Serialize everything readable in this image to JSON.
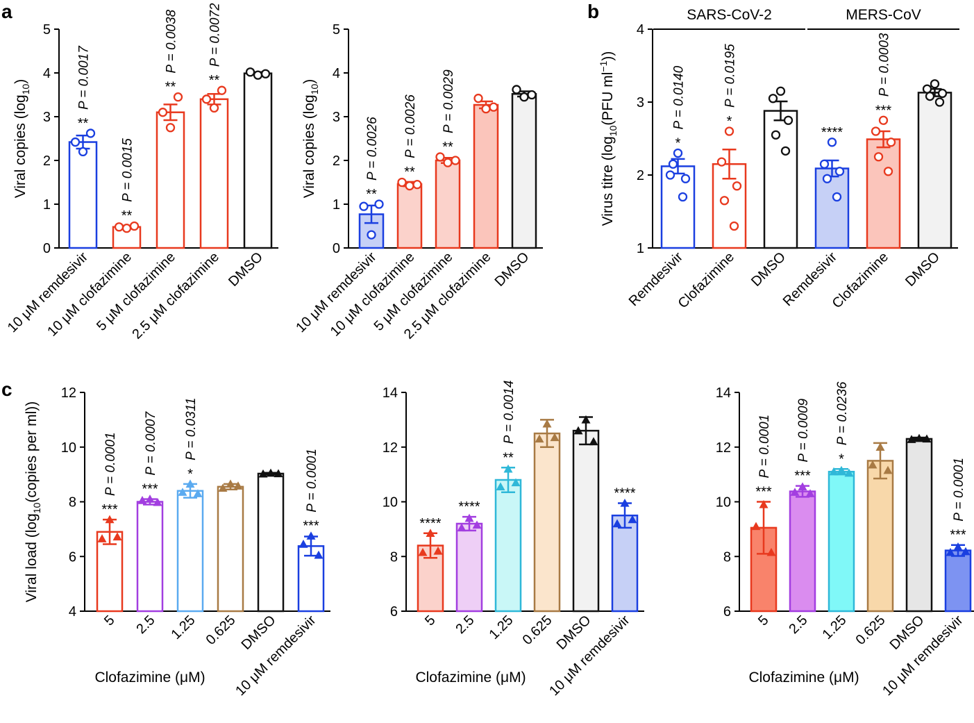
{
  "panel_labels": {
    "a": "a",
    "b": "b",
    "c": "c"
  },
  "chart_data": [
    {
      "id": "a1",
      "type": "bar",
      "title": "",
      "ylabel": "Viral copies (log",
      "ylabel_sub": "10",
      "ylabel_end": ")",
      "ylim": [
        0,
        5
      ],
      "yticks": [
        "0",
        "1",
        "2",
        "3",
        "4",
        "5"
      ],
      "xlabel": "",
      "categories": [
        "10 μM remdesivir",
        "10 μM clofazimine",
        "5 μM clofazimine",
        "2.5 μM clofazimine",
        "DMSO"
      ],
      "values": [
        2.42,
        0.48,
        3.1,
        3.4,
        3.99
      ],
      "errors": [
        0.15,
        0.03,
        0.18,
        0.12,
        0.03
      ],
      "points": [
        [
          2.2,
          2.42,
          2.62
        ],
        [
          0.45,
          0.48,
          0.5
        ],
        [
          2.75,
          3.1,
          3.45
        ],
        [
          3.2,
          3.4,
          3.6
        ],
        [
          3.95,
          4.02,
          3.98
        ]
      ],
      "colors": [
        "#1a3fe0",
        "#e8391e",
        "#e8391e",
        "#e8391e",
        "#111111"
      ],
      "fills": [
        "#ffffff",
        "#ffffff",
        "#ffffff",
        "#ffffff",
        "#ffffff"
      ],
      "marker": "circle-open",
      "stars": [
        "**",
        "**",
        "**",
        "**",
        ""
      ],
      "pvalues": [
        "P = 0.0017",
        "P = 0.0015",
        "P = 0.0038",
        "P = 0.0072",
        ""
      ]
    },
    {
      "id": "a2",
      "type": "bar",
      "title": "",
      "ylabel": "Viral copies (log",
      "ylabel_sub": "10",
      "ylabel_end": ")",
      "ylim": [
        0,
        5
      ],
      "yticks": [
        "0",
        "1",
        "2",
        "3",
        "4",
        "5"
      ],
      "xlabel": "",
      "categories": [
        "10 μM remdesivir",
        "10 μM clofazimine",
        "5 μM clofazimine",
        "2.5 μM clofazimine",
        "DMSO"
      ],
      "values": [
        0.77,
        1.46,
        2.0,
        3.27,
        3.52
      ],
      "errors": [
        0.2,
        0.05,
        0.06,
        0.08,
        0.06
      ],
      "points": [
        [
          0.3,
          0.95,
          1.0
        ],
        [
          1.42,
          1.5,
          1.45
        ],
        [
          1.95,
          2.08,
          2.0
        ],
        [
          3.18,
          3.42,
          3.22
        ],
        [
          3.45,
          3.62,
          3.5
        ]
      ],
      "colors": [
        "#1a3fe0",
        "#e8391e",
        "#e8391e",
        "#e8391e",
        "#111111"
      ],
      "fills": [
        "#c6d0f6",
        "#fbd2cb",
        "#fbd2cb",
        "#fbc5bb",
        "#f2f2f2"
      ],
      "marker": "circle-open",
      "stars": [
        "**",
        "**",
        "**",
        "",
        ""
      ],
      "pvalues": [
        "P = 0.0026",
        "P = 0.0026",
        "P = 0.0029",
        "",
        ""
      ]
    },
    {
      "id": "b",
      "type": "bar",
      "title": "",
      "ylabel": "Virus titre (log",
      "ylabel_sub": "10",
      "ylabel_mid": "(PFU ml",
      "ylabel_sup": "−1",
      "ylabel_end": "))",
      "ylim": [
        1,
        4
      ],
      "yticks": [
        "1",
        "2",
        "3",
        "4"
      ],
      "xlabel": "",
      "groups": [
        {
          "label": "SARS-CoV-2",
          "span": [
            0,
            2
          ]
        },
        {
          "label": "MERS-CoV",
          "span": [
            3,
            5
          ]
        }
      ],
      "categories": [
        "Remdesivir",
        "Clofazimine",
        "DMSO",
        "Remdesivir",
        "Clofazimine",
        "DMSO"
      ],
      "values": [
        2.12,
        2.15,
        2.88,
        2.09,
        2.49,
        3.13
      ],
      "errors": [
        0.1,
        0.2,
        0.13,
        0.11,
        0.11,
        0.05
      ],
      "points": [
        [
          2.3,
          2.0,
          1.95,
          2.15,
          1.7
        ],
        [
          2.6,
          2.18,
          1.85,
          1.65,
          1.3
        ],
        [
          3.15,
          3.05,
          2.75,
          2.55,
          2.33
        ],
        [
          2.45,
          2.15,
          2.05,
          1.95,
          1.7
        ],
        [
          2.75,
          2.6,
          2.45,
          2.25,
          2.05
        ],
        [
          3.25,
          3.18,
          3.12,
          3.08,
          3.0
        ]
      ],
      "colors": [
        "#1a3fe0",
        "#e8391e",
        "#111111",
        "#1a3fe0",
        "#e8391e",
        "#111111"
      ],
      "fills": [
        "#ffffff",
        "#ffffff",
        "#ffffff",
        "#c6d0f6",
        "#fbc5bb",
        "#f2f2f2"
      ],
      "marker": "circle-open",
      "stars": [
        "*",
        "*",
        "",
        "****",
        "***",
        ""
      ],
      "pvalues": [
        "P = 0.0140",
        "P = 0.0195",
        "",
        "",
        "P = 0.0003",
        ""
      ]
    },
    {
      "id": "c1",
      "type": "bar",
      "title": "",
      "ylabel": "Viral load (log",
      "ylabel_sub": "10",
      "ylabel_end": "(copies per ml))",
      "ylim": [
        4,
        12
      ],
      "yticks": [
        "4",
        "6",
        "8",
        "10",
        "12"
      ],
      "xlabel": "Clofazimine (μM)",
      "categories": [
        "5",
        "2.5",
        "1.25",
        "0.625",
        "DMSO",
        "10 μM remdesivir"
      ],
      "values": [
        6.9,
        8.0,
        8.4,
        8.55,
        9.03,
        6.38
      ],
      "errors": [
        0.45,
        0.1,
        0.25,
        0.1,
        0.03,
        0.35
      ],
      "points": [
        [
          7.35,
          6.65,
          6.72
        ],
        [
          8.1,
          8.05,
          7.98
        ],
        [
          8.65,
          8.35,
          8.3
        ],
        [
          8.65,
          8.5,
          8.58
        ],
        [
          9.05,
          9.02,
          9.03
        ],
        [
          6.75,
          6.45,
          6.05
        ]
      ],
      "colors": [
        "#e8391e",
        "#a23ee0",
        "#5aaaf0",
        "#a87a44",
        "#111111",
        "#1a3fe0"
      ],
      "fills": [
        "#ffffff",
        "#ffffff",
        "#ffffff",
        "#ffffff",
        "#ffffff",
        "#ffffff"
      ],
      "marker": "triangle",
      "stars": [
        "***",
        "***",
        "*",
        "",
        "",
        "***"
      ],
      "pvalues": [
        "P = 0.0001",
        "P = 0.0007",
        "P = 0.0311",
        "",
        "",
        "P = 0.0001"
      ]
    },
    {
      "id": "c2",
      "type": "bar",
      "title": "",
      "ylabel": "",
      "ylim": [
        6,
        14
      ],
      "yticks": [
        "6",
        "8",
        "10",
        "12",
        "14"
      ],
      "xlabel": "Clofazimine (μM)",
      "categories": [
        "5",
        "2.5",
        "1.25",
        "0.625",
        "DMSO",
        "10 μM remdesivir"
      ],
      "values": [
        8.4,
        9.2,
        10.8,
        12.5,
        12.6,
        9.5
      ],
      "errors": [
        0.45,
        0.25,
        0.45,
        0.5,
        0.5,
        0.45
      ],
      "points": [
        [
          8.85,
          8.15,
          8.2
        ],
        [
          9.4,
          9.05,
          9.15
        ],
        [
          11.2,
          10.55,
          10.7
        ],
        [
          12.85,
          12.3,
          12.35
        ],
        [
          13.0,
          12.6,
          12.2
        ],
        [
          9.95,
          9.2,
          9.35
        ]
      ],
      "colors": [
        "#e8391e",
        "#a23ee0",
        "#2fb8d8",
        "#a87a44",
        "#111111",
        "#1a3fe0"
      ],
      "fills": [
        "#fbd2cb",
        "#eecff6",
        "#c9f7f7",
        "#fbe5cc",
        "#f2f2f2",
        "#c6d0f6"
      ],
      "marker": "triangle",
      "stars": [
        "****",
        "****",
        "**",
        "",
        "",
        "****"
      ],
      "pvalues": [
        "",
        "",
        "P = 0.0014",
        "",
        "",
        ""
      ]
    },
    {
      "id": "c3",
      "type": "bar",
      "title": "",
      "ylabel": "",
      "ylim": [
        6,
        14
      ],
      "yticks": [
        "6",
        "8",
        "10",
        "12",
        "14"
      ],
      "xlabel": "Clofazimine (μM)",
      "categories": [
        "5",
        "2.5",
        "1.25",
        "0.625",
        "DMSO",
        "10 μM remdesivir"
      ],
      "values": [
        9.05,
        10.38,
        11.1,
        11.5,
        12.3,
        8.22
      ],
      "errors": [
        0.95,
        0.2,
        0.1,
        0.65,
        0.05,
        0.2
      ],
      "points": [
        [
          9.9,
          9.1,
          8.15
        ],
        [
          10.55,
          10.35,
          10.3
        ],
        [
          11.15,
          11.1,
          11.05
        ],
        [
          12.0,
          11.35,
          11.15
        ],
        [
          12.32,
          12.28,
          12.3
        ],
        [
          8.35,
          8.15,
          8.18
        ]
      ],
      "colors": [
        "#e8391e",
        "#a23ee0",
        "#2fb8d8",
        "#a87a44",
        "#111111",
        "#1a3fe0"
      ],
      "fills": [
        "#f9836b",
        "#da8cef",
        "#80f8f8",
        "#f8d8aa",
        "#e6e6e6",
        "#7d93f2"
      ],
      "marker": "triangle",
      "stars": [
        "***",
        "***",
        "*",
        "",
        "",
        "***"
      ],
      "pvalues": [
        "P = 0.0001",
        "P = 0.0009",
        "P = 0.0236",
        "",
        "",
        "P = 0.0001"
      ]
    }
  ]
}
